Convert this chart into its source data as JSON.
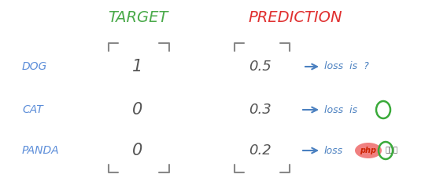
{
  "title_target": "TARGET",
  "title_prediction": "PREDICTION",
  "labels": [
    "DOG",
    "CAT",
    "PANDA"
  ],
  "target_values": [
    "1",
    "0",
    "0"
  ],
  "pred_values": [
    "0.5",
    "0.3",
    "0.2"
  ],
  "label_color": "#5b8dd9",
  "value_color": "#555555",
  "title_target_color": "#4aaa4a",
  "title_pred_color": "#e03030",
  "arrow_color": "#4a80c0",
  "loss_text_color": "#4a80c0",
  "bracket_color": "#888888",
  "bg_color": "#ffffff",
  "circle_color": "#3aaa3a",
  "php_fill": "#f08080",
  "php_text": "#cc2200",
  "watermark_text_color": "#555555"
}
